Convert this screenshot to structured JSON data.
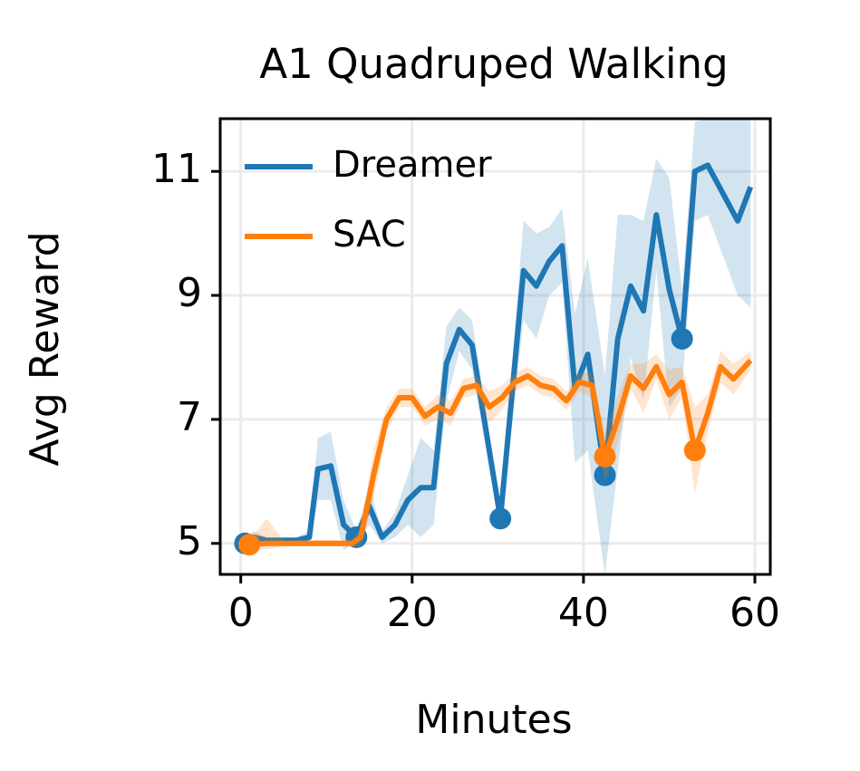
{
  "chart_data": {
    "type": "line",
    "title": "A1 Quadruped Walking",
    "xlabel": "Minutes",
    "ylabel": "Avg Reward",
    "xlim": [
      -2.4,
      61.8
    ],
    "ylim": [
      4.5,
      11.85
    ],
    "xticks": [
      0,
      20,
      40,
      60
    ],
    "yticks": [
      5,
      7,
      9,
      11
    ],
    "grid": true,
    "legend": "upper left",
    "series": [
      {
        "name": "Dreamer",
        "color": "#1f77b4",
        "x": [
          0.5,
          1.5,
          3,
          5,
          6.5,
          8,
          9,
          10.5,
          12,
          13.5,
          15,
          16.5,
          18,
          19.5,
          21,
          22.5,
          24,
          25.5,
          27,
          30.3,
          33,
          34.5,
          36,
          37.5,
          39,
          40.5,
          42.5,
          44,
          45.5,
          47,
          48.5,
          50,
          51.5,
          53,
          54.5,
          58,
          59.5
        ],
        "values": [
          5.0,
          5.1,
          5.05,
          5.05,
          5.05,
          5.1,
          6.2,
          6.25,
          5.3,
          5.1,
          5.6,
          5.1,
          5.3,
          5.7,
          5.9,
          5.9,
          7.9,
          8.45,
          8.2,
          5.4,
          9.4,
          9.15,
          9.55,
          9.8,
          7.5,
          8.05,
          6.1,
          8.3,
          9.15,
          8.75,
          10.3,
          9.1,
          8.3,
          11.0,
          11.1,
          10.2,
          10.75
        ],
        "lower": [
          4.95,
          5.0,
          5.0,
          5.0,
          5.0,
          5.0,
          5.7,
          5.7,
          4.9,
          5.0,
          5.3,
          5.0,
          5.1,
          5.3,
          5.1,
          5.3,
          7.3,
          8.1,
          7.8,
          5.2,
          8.6,
          8.3,
          9.0,
          9.2,
          6.3,
          6.5,
          4.5,
          6.2,
          8.0,
          7.3,
          9.4,
          7.2,
          7.5,
          10.2,
          10.3,
          9.0,
          8.8
        ],
        "upper": [
          5.05,
          5.2,
          5.1,
          5.1,
          5.1,
          5.2,
          6.7,
          6.8,
          5.7,
          5.2,
          5.9,
          5.2,
          5.5,
          6.1,
          6.7,
          6.5,
          8.5,
          8.8,
          8.6,
          5.6,
          10.2,
          10.0,
          10.1,
          10.4,
          8.7,
          9.6,
          7.7,
          10.3,
          10.3,
          10.2,
          11.2,
          10.9,
          9.1,
          11.8,
          11.85,
          11.85,
          11.85
        ],
        "markers": [
          0,
          9,
          19,
          26,
          32
        ]
      },
      {
        "name": "SAC",
        "color": "#ff7f0e",
        "x": [
          1,
          3,
          5,
          7,
          9,
          11,
          13,
          14,
          15.5,
          17,
          18.5,
          20,
          21.5,
          23,
          24.5,
          26,
          27.5,
          29,
          30.5,
          32,
          33.5,
          35,
          36.5,
          38,
          39.5,
          41,
          42.5,
          44,
          45.5,
          47,
          48.5,
          50,
          51.5,
          53,
          54.5,
          56,
          57.5,
          59.5
        ],
        "values": [
          4.98,
          5,
          5,
          5,
          5,
          5,
          5,
          5.1,
          6.1,
          7,
          7.35,
          7.35,
          7.05,
          7.2,
          7.1,
          7.5,
          7.55,
          7.2,
          7.35,
          7.6,
          7.7,
          7.55,
          7.5,
          7.3,
          7.6,
          7.55,
          6.4,
          7.0,
          7.7,
          7.5,
          7.85,
          7.4,
          7.6,
          6.5,
          7.1,
          7.85,
          7.65,
          7.95
        ],
        "lower": [
          4.9,
          4.9,
          4.95,
          4.95,
          4.95,
          4.95,
          4.95,
          4.95,
          5.7,
          6.8,
          7.2,
          7.2,
          6.9,
          7.0,
          6.9,
          7.35,
          7.4,
          6.95,
          7.15,
          7.45,
          7.55,
          7.4,
          7.35,
          7.15,
          7.45,
          7.35,
          6.0,
          6.6,
          7.5,
          7.1,
          7.65,
          7.0,
          7.35,
          5.8,
          6.8,
          7.6,
          7.4,
          7.8
        ],
        "upper": [
          5.05,
          5.4,
          5.05,
          5.05,
          5.05,
          5.05,
          5.05,
          5.25,
          6.5,
          7.2,
          7.5,
          7.5,
          7.2,
          7.4,
          7.3,
          7.65,
          7.7,
          7.45,
          7.55,
          7.75,
          7.85,
          7.7,
          7.65,
          7.45,
          7.75,
          7.75,
          6.8,
          7.4,
          7.9,
          7.9,
          8.05,
          7.8,
          7.85,
          7.2,
          7.4,
          8.1,
          7.9,
          8.1
        ],
        "markers": [
          0,
          26,
          33
        ]
      }
    ]
  }
}
